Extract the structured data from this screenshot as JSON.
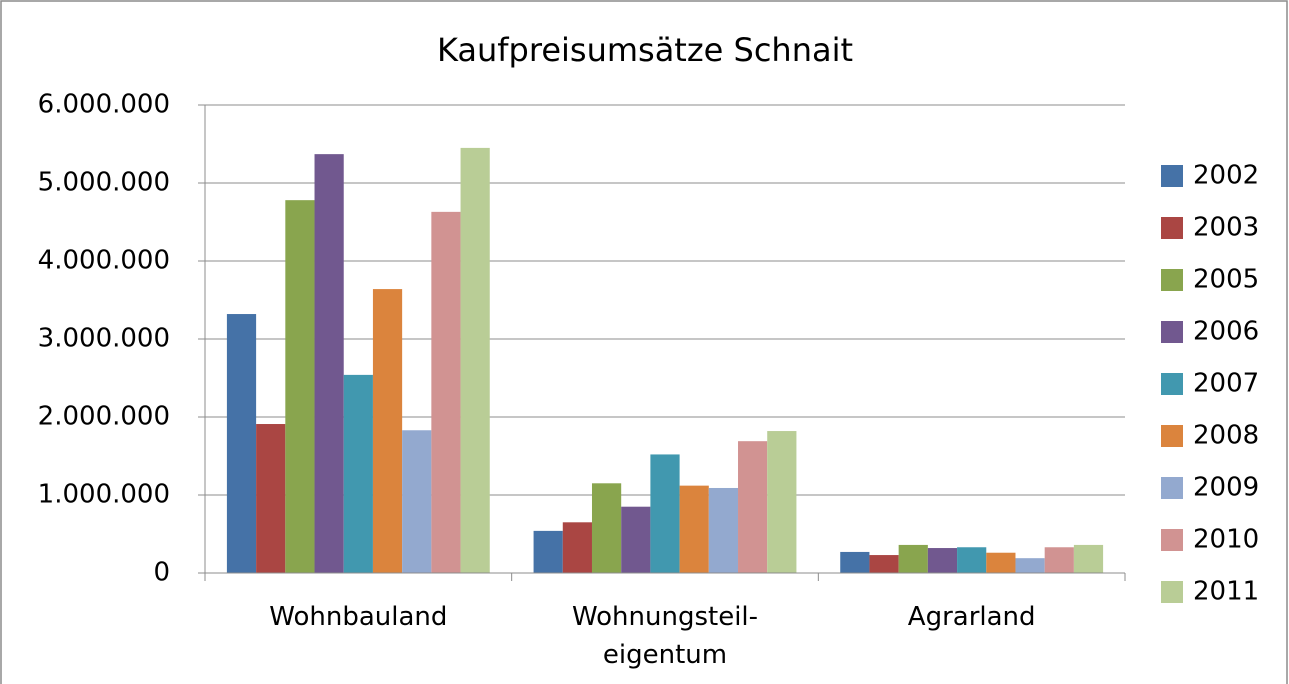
{
  "chart_data": {
    "type": "bar",
    "title": "Kaufpreisumsätze Schnait",
    "categories": [
      "Wohnbauland",
      "Wohnungsteil-eigentum",
      "Agrarland"
    ],
    "series": [
      {
        "name": "2002",
        "color": "#4572a7",
        "values": [
          3320000,
          540000,
          270000
        ]
      },
      {
        "name": "2003",
        "color": "#aa4643",
        "values": [
          1910000,
          650000,
          230000
        ]
      },
      {
        "name": "2005",
        "color": "#89a54e",
        "values": [
          4780000,
          1150000,
          360000
        ]
      },
      {
        "name": "2006",
        "color": "#71588f",
        "values": [
          5370000,
          850000,
          320000
        ]
      },
      {
        "name": "2007",
        "color": "#4198af",
        "values": [
          2540000,
          1520000,
          330000
        ]
      },
      {
        "name": "2008",
        "color": "#db843d",
        "values": [
          3640000,
          1120000,
          260000
        ]
      },
      {
        "name": "2009",
        "color": "#93a9cf",
        "values": [
          1830000,
          1090000,
          190000
        ]
      },
      {
        "name": "2010",
        "color": "#d19392",
        "values": [
          4630000,
          1690000,
          330000
        ]
      },
      {
        "name": "2011",
        "color": "#b9cd96",
        "values": [
          5450000,
          1820000,
          360000
        ]
      }
    ],
    "ylim": [
      0,
      6000000
    ],
    "yticks": [
      0,
      {
        "value": 1000000,
        "label": "1.000.000"
      },
      {
        "value": 2000000,
        "label": "2.000.000"
      },
      {
        "value": 3000000,
        "label": "3.000.000"
      },
      {
        "value": 4000000,
        "label": "4.000.000"
      },
      {
        "value": 5000000,
        "label": "5.000.000"
      },
      {
        "value": 6000000,
        "label": "6.000.000"
      }
    ],
    "grid": true,
    "legend": "right"
  }
}
